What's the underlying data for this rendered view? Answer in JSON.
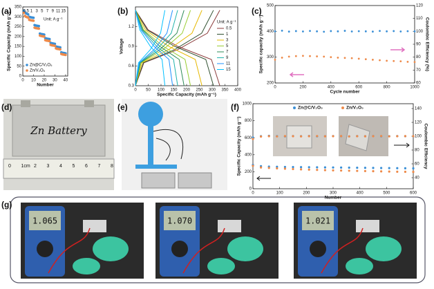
{
  "panels": [
    "(a)",
    "(b)",
    "(c)",
    "(d)",
    "(e)",
    "(f)",
    "(g)"
  ],
  "chart_data": [
    {
      "type": "scatter",
      "xlabel": "Number",
      "ylabel": "Specific Capacity (mAh g⁻¹)",
      "x": [
        1,
        2,
        3,
        4,
        5,
        6,
        7,
        8,
        9,
        10,
        11,
        12,
        13,
        14,
        15,
        16,
        17,
        18,
        19,
        20,
        21,
        22,
        23,
        24,
        25,
        26,
        27,
        28,
        29,
        30,
        31,
        32,
        33,
        34,
        35,
        36,
        37,
        38,
        39,
        40
      ],
      "xlim": [
        0,
        42
      ],
      "xticks": [
        0,
        10,
        20,
        30,
        40
      ],
      "ylim": [
        0,
        350
      ],
      "yticks": [
        0,
        50,
        100,
        150,
        200,
        250,
        300,
        350
      ],
      "step_labels": [
        "0.5",
        "1",
        "3",
        "5",
        "7",
        "9",
        "11",
        "15"
      ],
      "note": "Unit: A g⁻¹",
      "legend": "lower left",
      "series": [
        {
          "name": "Zn@C/V₂O₅",
          "color": "#3a8fd6",
          "values": [
            330,
            322,
            318,
            315,
            312,
            300,
            298,
            297,
            296,
            295,
            258,
            256,
            255,
            254,
            253,
            215,
            213,
            212,
            211,
            210,
            192,
            190,
            189,
            188,
            187,
            168,
            166,
            165,
            164,
            163,
            150,
            148,
            147,
            146,
            145,
            120,
            118,
            117,
            116,
            115
          ]
        },
        {
          "name": "Zn/V₂O₅",
          "color": "#ee8a4a",
          "values": [
            320,
            305,
            300,
            298,
            296,
            285,
            283,
            282,
            281,
            280,
            245,
            243,
            242,
            241,
            240,
            205,
            203,
            202,
            201,
            200,
            182,
            180,
            179,
            178,
            177,
            158,
            156,
            155,
            154,
            153,
            140,
            138,
            137,
            136,
            135,
            112,
            110,
            109,
            108,
            107
          ]
        }
      ]
    },
    {
      "type": "line",
      "xlabel": "Specific Capacity (mAh g⁻¹)",
      "ylabel": "Voltage",
      "xlim": [
        0,
        400
      ],
      "xticks": [
        0,
        50,
        100,
        150,
        200,
        250,
        300,
        350,
        400
      ],
      "ylim": [
        0.3,
        1.5
      ],
      "yticks": [
        0.3,
        0.6,
        0.9,
        1.2
      ],
      "legend": "upper right",
      "legend_title": "Unit: A g⁻¹",
      "series": [
        {
          "name": "0.5",
          "color": "#8b3a3a",
          "x": [
            0,
            50,
            165,
            297,
            330,
            null,
            0,
            33,
            165,
            281,
            330
          ],
          "values": [
            1.45,
            1.15,
            0.9,
            0.7,
            0.3,
            null,
            0.3,
            0.65,
            0.85,
            1.1,
            1.45
          ]
        },
        {
          "name": "1",
          "color": "#2f4f2f",
          "x": [
            0,
            46,
            153,
            275,
            305,
            null,
            0,
            31,
            153,
            259,
            305
          ],
          "values": [
            1.45,
            1.15,
            0.9,
            0.7,
            0.3,
            null,
            0.3,
            0.65,
            0.85,
            1.1,
            1.45
          ]
        },
        {
          "name": "3",
          "color": "#e6b800",
          "x": [
            0,
            39,
            130,
            234,
            260,
            null,
            0,
            26,
            130,
            221,
            260
          ],
          "values": [
            1.45,
            1.15,
            0.9,
            0.7,
            0.3,
            null,
            0.3,
            0.65,
            0.85,
            1.1,
            1.45
          ]
        },
        {
          "name": "5",
          "color": "#9acd32",
          "x": [
            0,
            32,
            108,
            194,
            215,
            null,
            0,
            22,
            108,
            183,
            215
          ],
          "values": [
            1.45,
            1.15,
            0.9,
            0.7,
            0.3,
            null,
            0.3,
            0.65,
            0.85,
            1.1,
            1.45
          ]
        },
        {
          "name": "7",
          "color": "#2e8b57",
          "x": [
            0,
            29,
            95,
            171,
            190,
            null,
            0,
            19,
            95,
            162,
            190
          ],
          "values": [
            1.45,
            1.15,
            0.9,
            0.7,
            0.3,
            null,
            0.3,
            0.65,
            0.85,
            1.1,
            1.45
          ]
        },
        {
          "name": "9",
          "color": "#20b2aa",
          "x": [
            0,
            25,
            83,
            149,
            165,
            null,
            0,
            17,
            83,
            140,
            165
          ],
          "values": [
            1.45,
            1.15,
            0.9,
            0.7,
            0.3,
            null,
            0.3,
            0.65,
            0.85,
            1.1,
            1.45
          ]
        },
        {
          "name": "11",
          "color": "#1e90ff",
          "x": [
            0,
            22,
            73,
            131,
            145,
            null,
            0,
            15,
            73,
            123,
            145
          ],
          "values": [
            1.45,
            1.15,
            0.9,
            0.7,
            0.3,
            null,
            0.3,
            0.65,
            0.85,
            1.1,
            1.45
          ]
        },
        {
          "name": "15",
          "color": "#00bfff",
          "x": [
            0,
            17,
            58,
            104,
            115,
            null,
            0,
            12,
            58,
            98,
            115
          ],
          "values": [
            1.45,
            1.15,
            0.9,
            0.7,
            0.3,
            null,
            0.3,
            0.65,
            0.85,
            1.1,
            1.45
          ]
        }
      ]
    },
    {
      "type": "scatter",
      "xlabel": "Cycle number",
      "ylabel": "Specific capacity (mAh g⁻¹)",
      "y2label": "Coulombic Efficiency (%)",
      "x": [
        0,
        50,
        100,
        150,
        200,
        250,
        300,
        350,
        400,
        450,
        500,
        550,
        600,
        650,
        700,
        750,
        800,
        850,
        900,
        950,
        1000
      ],
      "xlim": [
        0,
        1000
      ],
      "xticks": [
        0,
        200,
        400,
        600,
        800,
        1000
      ],
      "ylim": [
        200,
        500
      ],
      "yticks": [
        200,
        300,
        400,
        500
      ],
      "y2lim": [
        60,
        120
      ],
      "y2ticks": [
        60,
        70,
        80,
        90,
        100,
        110,
        120
      ],
      "series": [
        {
          "color": "#3a8fd6",
          "axis": "y2",
          "values": [
            100,
            100.5,
            99.8,
            100.2,
            99.9,
            100.3,
            100,
            99.7,
            100.2,
            100,
            100.4,
            99.9,
            100.1,
            100,
            99.8,
            100.3,
            100,
            100.2,
            99.9,
            100.1,
            100
          ]
        },
        {
          "color": "#ee8a4a",
          "values": [
            290,
            298,
            302,
            304,
            305,
            304,
            303,
            302,
            300,
            298,
            297,
            296,
            294,
            292,
            290,
            288,
            286,
            285,
            284,
            282,
            281
          ]
        }
      ]
    },
    {
      "type": "scatter",
      "xlabel": "Number",
      "ylabel": "Specific Capacity (mAh g⁻¹)",
      "y2label": "Coulombic Efficiency",
      "x": [
        0,
        30,
        60,
        90,
        120,
        150,
        180,
        210,
        240,
        270,
        300,
        330,
        360,
        390,
        420,
        450,
        480,
        510,
        540,
        570,
        600
      ],
      "xlim": [
        0,
        600
      ],
      "xticks": [
        0,
        100,
        200,
        300,
        400,
        500,
        600
      ],
      "ylim": [
        0,
        1000
      ],
      "yticks": [
        0,
        200,
        400,
        600,
        800,
        1000
      ],
      "y2lim": [
        24,
        147
      ],
      "y2ticks": [
        40,
        60,
        80,
        100,
        120,
        140
      ],
      "legend": "top",
      "series": [
        {
          "name": "Zn@C/V₂O₅",
          "color": "#3a8fd6",
          "values": [
            280,
            265,
            260,
            258,
            256,
            255,
            254,
            253,
            252,
            251,
            250,
            249,
            248,
            247,
            246,
            245,
            244,
            243,
            242,
            241,
            240
          ]
        },
        {
          "name": "Zn/V₂O₅",
          "color": "#ee8a4a",
          "values": [
            270,
            250,
            245,
            240,
            236,
            232,
            228,
            225,
            222,
            219,
            216,
            214,
            212,
            210,
            208,
            206,
            204,
            202,
            200,
            199,
            198
          ]
        },
        {
          "color": "#3a8fd6",
          "axis": "y2",
          "values": [
            98,
            100,
            100.5,
            100,
            99.8,
            100.2,
            100,
            100.3,
            99.9,
            100,
            100.2,
            100,
            99.8,
            100.1,
            100,
            100.2,
            99.9,
            100,
            100.1,
            100,
            99.9
          ]
        },
        {
          "color": "#ee8a4a",
          "axis": "y2",
          "values": [
            96,
            99.5,
            100,
            99.7,
            100.1,
            100,
            99.8,
            100,
            100.2,
            99.9,
            100,
            100.1,
            99.7,
            100,
            99.9,
            100,
            100.2,
            99.8,
            100,
            100.1,
            100
          ]
        }
      ]
    }
  ],
  "photo_d": {
    "label": "Zn Battery",
    "ruler": [
      "0",
      "1cm",
      "2",
      "3",
      "4",
      "5",
      "6",
      "7",
      "8"
    ]
  },
  "photo_g": {
    "readings": [
      "1.065",
      "1.070",
      "1.021"
    ]
  }
}
